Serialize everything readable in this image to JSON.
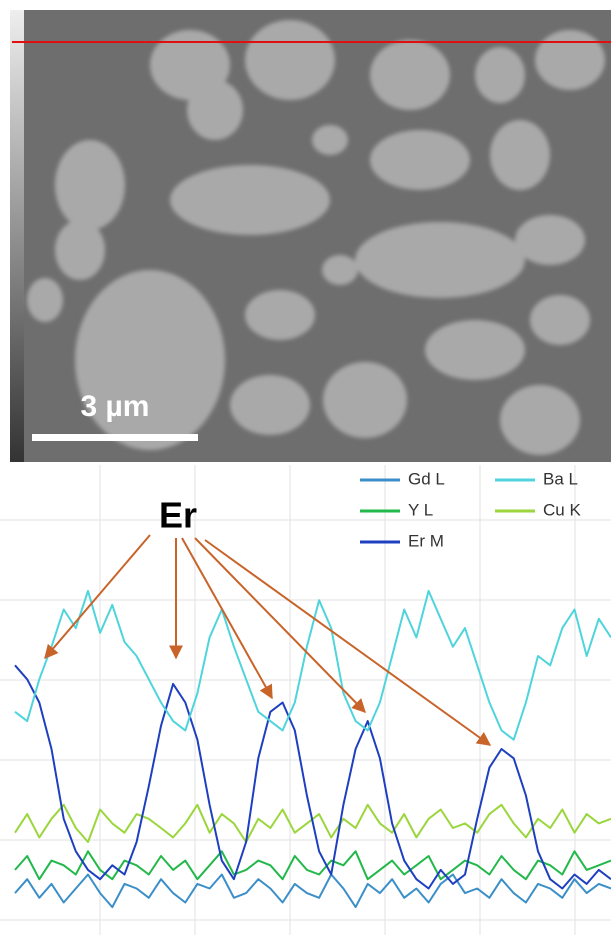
{
  "image": {
    "scale_bar_label": "3 µm"
  },
  "chart_data": {
    "type": "line",
    "annotation": "Er",
    "ylim": [
      0,
      100
    ],
    "series": [
      {
        "name": "Gd L",
        "color": "#3b8fc8",
        "values": [
          9,
          12,
          8,
          11,
          7,
          10,
          13,
          9,
          6,
          11,
          10,
          8,
          12,
          9,
          7,
          11,
          10,
          13,
          8,
          9,
          12,
          10,
          7,
          11,
          9,
          8,
          13,
          10,
          6,
          11,
          9,
          12,
          8,
          10,
          7,
          11,
          13,
          9,
          10,
          8,
          12,
          9,
          7,
          11,
          10,
          8,
          12,
          9,
          11,
          10
        ]
      },
      {
        "name": "Ba L",
        "color": "#4fd4dc",
        "values": [
          48,
          46,
          55,
          62,
          70,
          66,
          74,
          65,
          71,
          63,
          60,
          55,
          50,
          46,
          44,
          52,
          64,
          70,
          62,
          55,
          48,
          46,
          44,
          50,
          62,
          72,
          66,
          52,
          46,
          44,
          50,
          60,
          70,
          64,
          74,
          68,
          62,
          66,
          58,
          50,
          44,
          42,
          50,
          60,
          58,
          66,
          70,
          60,
          68,
          64
        ]
      },
      {
        "name": "Y L",
        "color": "#22b84a",
        "values": [
          14,
          17,
          12,
          16,
          15,
          13,
          18,
          14,
          12,
          16,
          15,
          13,
          17,
          14,
          16,
          12,
          15,
          18,
          13,
          14,
          16,
          15,
          12,
          17,
          14,
          13,
          16,
          15,
          18,
          12,
          14,
          16,
          13,
          15,
          17,
          12,
          14,
          16,
          15,
          13,
          17,
          14,
          12,
          16,
          15,
          13,
          18,
          14,
          15,
          16
        ]
      },
      {
        "name": "Cu K",
        "color": "#9ad63c",
        "values": [
          22,
          26,
          21,
          25,
          28,
          23,
          20,
          27,
          24,
          22,
          26,
          25,
          23,
          21,
          24,
          28,
          22,
          26,
          24,
          20,
          25,
          23,
          27,
          22,
          24,
          26,
          21,
          25,
          23,
          28,
          24,
          22,
          26,
          21,
          25,
          27,
          23,
          24,
          22,
          26,
          28,
          24,
          21,
          25,
          23,
          27,
          22,
          26,
          24,
          25
        ]
      },
      {
        "name": "Er M",
        "color": "#1e3fbf",
        "values": [
          58,
          55,
          50,
          40,
          25,
          18,
          14,
          12,
          15,
          13,
          20,
          32,
          45,
          54,
          50,
          42,
          28,
          16,
          12,
          20,
          38,
          48,
          50,
          44,
          30,
          18,
          13,
          28,
          40,
          46,
          38,
          24,
          16,
          12,
          10,
          14,
          11,
          13,
          25,
          36,
          40,
          38,
          30,
          18,
          12,
          10,
          13,
          11,
          14,
          12
        ]
      }
    ]
  }
}
